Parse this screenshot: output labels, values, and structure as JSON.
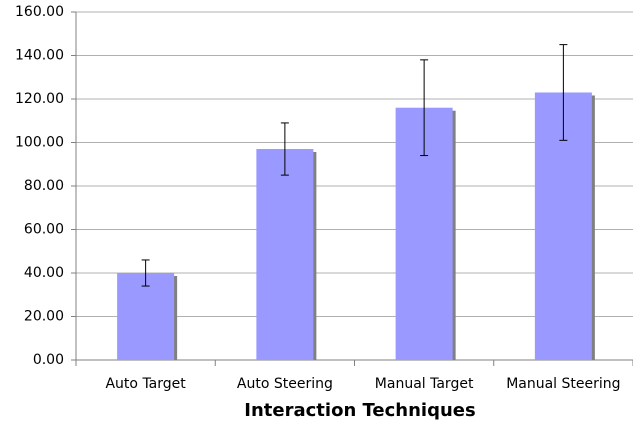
{
  "chart_data": {
    "type": "bar",
    "x_label": "Interaction Techniques",
    "categories": [
      "Auto Target",
      "Auto Steering",
      "Manual Target",
      "Manual Steering"
    ],
    "values": [
      40,
      97,
      116,
      123
    ],
    "errors": [
      6,
      12,
      22,
      22
    ],
    "color": "#9999ff",
    "ylim": [
      0,
      160
    ],
    "yticks": [
      {
        "value": 0,
        "label": "0.00"
      },
      {
        "value": 20,
        "label": "20.00"
      },
      {
        "value": 40,
        "label": "40.00"
      },
      {
        "value": 60,
        "label": "60.00"
      },
      {
        "value": 80,
        "label": "80.00"
      },
      {
        "value": 100,
        "label": "100.00"
      },
      {
        "value": 120,
        "label": "120.00"
      },
      {
        "value": 140,
        "label": "140.00"
      },
      {
        "value": 160,
        "label": "160.00"
      }
    ],
    "grid": true
  }
}
